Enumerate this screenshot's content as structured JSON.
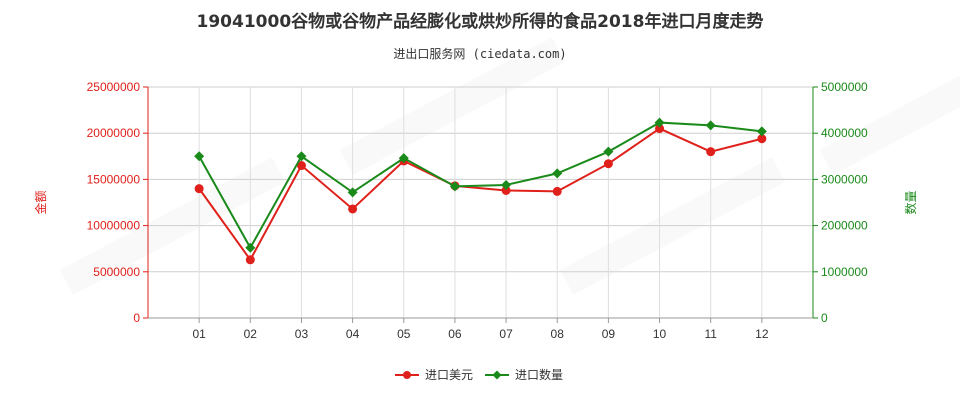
{
  "chart_data": {
    "type": "line",
    "title": "19041000谷物或谷物产品经膨化或烘炒所得的食品2018年进口月度走势",
    "subtitle": "进出口服务网 (ciedata.com)",
    "categories": [
      "01",
      "02",
      "03",
      "04",
      "05",
      "06",
      "07",
      "08",
      "09",
      "10",
      "11",
      "12"
    ],
    "y_left": {
      "label": "金额",
      "range": [
        0,
        25000000
      ],
      "ticks": [
        "0",
        "5000000",
        "10000000",
        "15000000",
        "20000000",
        "25000000"
      ],
      "color": "#e0201b"
    },
    "y_right": {
      "label": "数量",
      "range": [
        0,
        5000000
      ],
      "ticks": [
        "0",
        "1000000",
        "2000000",
        "3000000",
        "4000000",
        "5000000"
      ],
      "color": "#1a8a1a"
    },
    "series": [
      {
        "name": "进口美元",
        "axis": "left",
        "color": "#e0201b",
        "values": [
          14000000,
          6300000,
          16500000,
          11800000,
          17000000,
          14300000,
          13800000,
          13700000,
          16700000,
          20500000,
          18000000,
          19400000
        ]
      },
      {
        "name": "进口数量",
        "axis": "right",
        "color": "#1a8a1a",
        "values": [
          3500000,
          1520000,
          3500000,
          2720000,
          3460000,
          2850000,
          2880000,
          3130000,
          3600000,
          4230000,
          4170000,
          4040000
        ]
      }
    ],
    "grid": true,
    "legend_position": "bottom"
  }
}
